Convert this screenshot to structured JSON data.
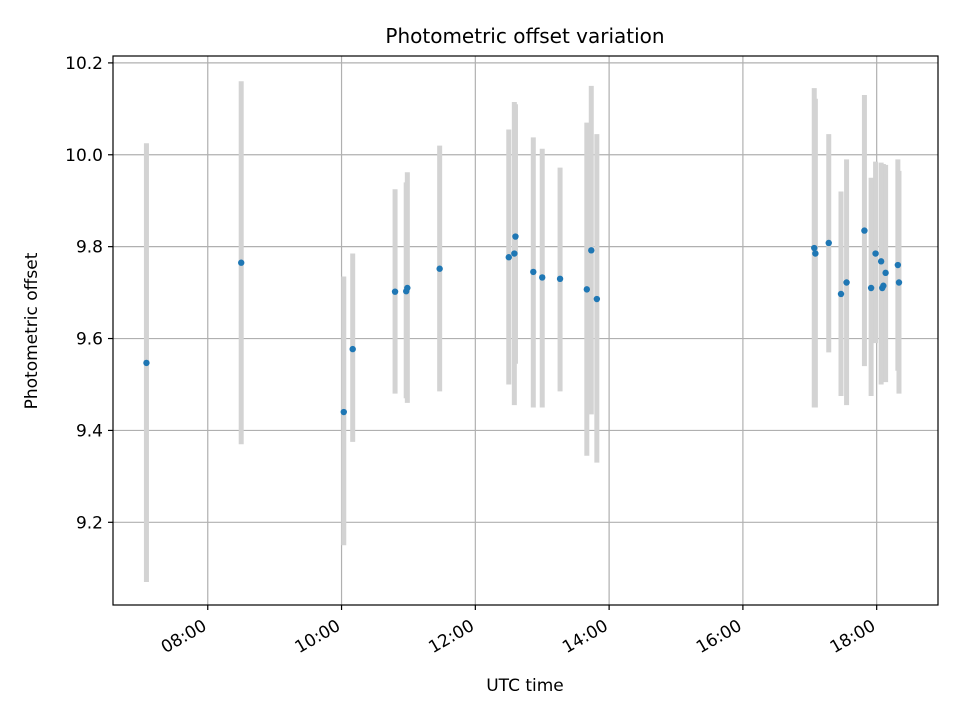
{
  "chart_data": {
    "type": "scatter",
    "title": "Photometric offset variation",
    "xlabel": "UTC time",
    "ylabel": "Photometric offset",
    "xlim": [
      "06:35",
      "18:55"
    ],
    "ylim": [
      9.02,
      10.215
    ],
    "x_ticks": [
      "08:00",
      "10:00",
      "12:00",
      "14:00",
      "16:00",
      "18:00"
    ],
    "y_ticks": [
      9.2,
      9.4,
      9.6,
      9.8,
      10.0,
      10.2
    ],
    "y_tick_labels": [
      "9.2",
      "9.4",
      "9.6",
      "9.8",
      "10.0",
      "10.2"
    ],
    "grid": true,
    "legend": "none",
    "colors": {
      "point": "#1f77b4",
      "errorbar": "#d3d3d3",
      "grid": "#b0b0b0"
    },
    "series": [
      {
        "x": [
          "07:05",
          "08:30",
          "10:02",
          "10:10",
          "10:48",
          "10:58",
          "10:59",
          "11:28",
          "12:30",
          "12:35",
          "12:36",
          "12:52",
          "13:00",
          "13:16",
          "13:40",
          "13:44",
          "13:49",
          "17:04",
          "17:05",
          "17:17",
          "17:28",
          "17:33",
          "17:49",
          "17:55",
          "17:59",
          "18:04",
          "18:05",
          "18:06",
          "18:08",
          "18:19",
          "18:20"
        ],
        "y": [
          9.547,
          9.765,
          9.44,
          9.577,
          9.702,
          9.703,
          9.71,
          9.752,
          9.777,
          9.785,
          9.822,
          9.745,
          9.733,
          9.73,
          9.707,
          9.792,
          9.686,
          9.797,
          9.785,
          9.808,
          9.697,
          9.722,
          9.835,
          9.71,
          9.785,
          9.768,
          9.71,
          9.715,
          9.743,
          9.76,
          9.722
        ],
        "y_low": [
          9.07,
          9.37,
          9.15,
          9.375,
          9.48,
          9.47,
          9.46,
          9.485,
          9.5,
          9.455,
          9.545,
          9.45,
          9.45,
          9.485,
          9.345,
          9.435,
          9.33,
          9.45,
          9.45,
          9.57,
          9.475,
          9.455,
          9.54,
          9.475,
          9.59,
          9.5,
          9.53,
          9.51,
          9.505,
          9.53,
          9.48
        ],
        "y_high": [
          10.025,
          10.16,
          9.735,
          9.785,
          9.925,
          9.94,
          9.962,
          10.02,
          10.055,
          10.115,
          10.11,
          10.038,
          10.013,
          9.972,
          10.07,
          10.15,
          10.045,
          10.145,
          10.122,
          10.045,
          9.92,
          9.99,
          10.13,
          9.95,
          9.985,
          9.983,
          9.98,
          9.98,
          9.978,
          9.99,
          9.965
        ]
      }
    ]
  }
}
